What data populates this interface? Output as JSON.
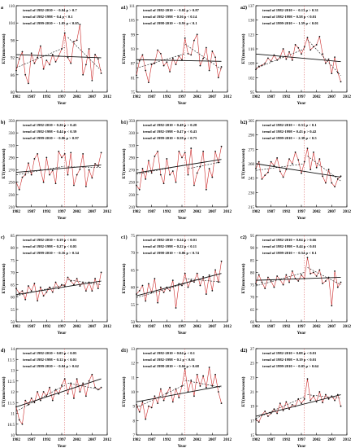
{
  "figure": {
    "rows": 4,
    "cols": 3,
    "colors": {
      "series": "#cc2b2b",
      "marker": "#111111",
      "trend": "#111111",
      "divider": "#cc2b2b",
      "axis": "#000000"
    }
  },
  "chart_data": [
    {
      "type": "line",
      "panel": "a",
      "xlabel": "Year",
      "ylabel": "ET(mm/season)",
      "xlim": [
        1982,
        2012
      ],
      "xticks": [
        1982,
        1987,
        1992,
        1997,
        2002,
        2007,
        2012
      ],
      "ylim": [
        80,
        110
      ],
      "yticks": [
        80,
        86,
        92,
        98,
        104,
        110
      ],
      "x_start": 1982,
      "values": [
        87.5,
        91.5,
        94.0,
        86.0,
        83.0,
        93.5,
        90.0,
        92.0,
        96.0,
        88.0,
        91.0,
        89.5,
        93.0,
        90.5,
        92.5,
        95.0,
        100.5,
        92.0,
        90.0,
        97.5,
        98.0,
        103.5,
        86.0,
        89.5,
        95.0,
        84.0,
        93.0,
        91.5,
        86.5
      ],
      "trend_lines": [
        {
          "label": "trend of 1982-2010 = - 0.04 p > 0.7",
          "x0": 1982,
          "x1": 2010,
          "y0": 93.0,
          "y1": 91.9,
          "style": "solid"
        },
        {
          "label": "trend of 1982-1998 = 0.4 p < 0.1",
          "x0": 1982,
          "x1": 1998,
          "y0": 88.5,
          "y1": 95.5,
          "style": "dash"
        },
        {
          "label": "trend of 1999-2010 = - 1.05 p < 0.05",
          "x0": 1999,
          "x1": 2010,
          "y0": 99.0,
          "y1": 87.5,
          "style": "dash"
        }
      ]
    },
    {
      "type": "line",
      "panel": "a1)",
      "xlabel": "Year",
      "ylabel": "ET(mm/season)",
      "xlim": [
        1982,
        2012
      ],
      "xticks": [
        1982,
        1987,
        1992,
        1997,
        2002,
        2007,
        2012
      ],
      "ylim": [
        75,
        111
      ],
      "yticks": [
        75,
        81,
        87,
        93,
        99,
        105,
        111
      ],
      "x_start": 1982,
      "values": [
        82.0,
        88.0,
        90.5,
        84.0,
        79.0,
        86.5,
        87.0,
        92.5,
        91.0,
        86.0,
        87.5,
        83.5,
        89.0,
        86.5,
        90.0,
        88.5,
        97.5,
        91.0,
        90.5,
        96.5,
        99.0,
        86.0,
        89.0,
        93.5,
        84.0,
        92.0,
        89.5,
        81.0,
        85.5
      ],
      "trend_lines": [
        {
          "label": "trend of 1982-2010 = - 0.02 p > 0.87",
          "x0": 1982,
          "x1": 2010,
          "y0": 88.5,
          "y1": 87.8,
          "style": "solid"
        },
        {
          "label": "trend of 1982-1998 = 0.36 p < 0.14",
          "x0": 1982,
          "x1": 1998,
          "y0": 85.0,
          "y1": 91.0,
          "style": "dash"
        },
        {
          "label": "trend of 1998-2010 = - 0.91 p < 0.1",
          "x0": 1998,
          "x1": 2010,
          "y0": 95.0,
          "y1": 84.5,
          "style": "dash"
        }
      ]
    },
    {
      "type": "line",
      "panel": "a2)",
      "xlabel": "Year",
      "ylabel": "ET(mm/season)",
      "xlim": [
        1982,
        2012
      ],
      "xticks": [
        1982,
        1987,
        1992,
        1997,
        2002,
        2007,
        2012
      ],
      "ylim": [
        95,
        137
      ],
      "yticks": [
        95,
        102,
        109,
        116,
        123,
        130,
        137
      ],
      "x_start": 1982,
      "values": [
        106.0,
        107.5,
        108.0,
        109.0,
        111.5,
        110.0,
        113.0,
        110.5,
        112.0,
        116.0,
        111.0,
        114.5,
        110.5,
        118.0,
        116.5,
        113.5,
        117.0,
        121.5,
        115.5,
        117.0,
        118.0,
        122.0,
        113.5,
        109.0,
        111.0,
        104.0,
        112.0,
        104.5,
        100.0
      ],
      "trend_lines": [
        {
          "label": "trend of 1982-2010 = - 0.13 p > 0.31",
          "x0": 1982,
          "x1": 2010,
          "y0": 113.5,
          "y1": 109.8,
          "style": "solid"
        },
        {
          "label": "trend of 1982-1998 = 0.58 p < 0.01",
          "x0": 1982,
          "x1": 1998,
          "y0": 106.5,
          "y1": 116.0,
          "style": "dash"
        },
        {
          "label": "trend of 1999-2010 = - 1.59 p < 0.01",
          "x0": 1999,
          "x1": 2010,
          "y0": 120.5,
          "y1": 103.0,
          "style": "dash"
        }
      ]
    },
    {
      "type": "line",
      "panel": "b)",
      "xlabel": "Year",
      "ylabel": "ET(mm/season)",
      "xlim": [
        1982,
        2012
      ],
      "xticks": [
        1982,
        1987,
        1992,
        1997,
        2002,
        2007,
        2012
      ],
      "ylim": [
        210,
        350
      ],
      "yticks": [
        210,
        230,
        250,
        270,
        290,
        310,
        330,
        350
      ],
      "x_start": 1982,
      "values": [
        250,
        238,
        258,
        262,
        281,
        262,
        288,
        296,
        270,
        250,
        290,
        262,
        269,
        248,
        300,
        290,
        296,
        262,
        298,
        245,
        262,
        271,
        296,
        243,
        270,
        257,
        280,
        276,
        298
      ],
      "trend_lines": [
        {
          "label": "trend of 1982-2010 = 0.26 p > 0.45",
          "x0": 1982,
          "x1": 2010,
          "y0": 266,
          "y1": 278,
          "style": "solid"
        },
        {
          "label": "trend of 1982-1998 = 0.44 p < 0.39",
          "x0": 1982,
          "x1": 1998,
          "y0": 262,
          "y1": 276,
          "style": "dash"
        },
        {
          "label": "trend of 1999-2010 = - 0.06 p > 0.97",
          "x0": 1999,
          "x1": 2010,
          "y0": 275,
          "y1": 274,
          "style": "dash"
        }
      ]
    },
    {
      "type": "line",
      "panel": "b1)",
      "xlabel": "Year",
      "ylabel": "ET(mm/season)",
      "xlim": [
        1982,
        2012
      ],
      "xticks": [
        1982,
        1987,
        1992,
        1997,
        2002,
        2007,
        2012
      ],
      "ylim": [
        210,
        350
      ],
      "yticks": [
        210,
        230,
        250,
        270,
        290,
        310,
        330,
        350
      ],
      "x_start": 1982,
      "values": [
        245,
        238,
        272,
        255,
        285,
        265,
        292,
        300,
        262,
        248,
        288,
        262,
        268,
        250,
        300,
        290,
        298,
        262,
        305,
        245,
        265,
        275,
        300,
        238,
        272,
        258,
        300,
        282,
        308
      ],
      "trend_lines": [
        {
          "label": "trend of 1982-2010 = 0.48 p > 0.28",
          "x0": 1982,
          "x1": 2010,
          "y0": 265,
          "y1": 287,
          "style": "solid"
        },
        {
          "label": "trend of 1982-1998 = 0.47 p < 0.43",
          "x0": 1982,
          "x1": 1998,
          "y0": 263,
          "y1": 278,
          "style": "dash"
        },
        {
          "label": "trend of 1999-2010 = 0.58 p < 0.75",
          "x0": 1999,
          "x1": 2010,
          "y0": 272,
          "y1": 283,
          "style": "dash"
        }
      ]
    },
    {
      "type": "line",
      "panel": "b2)",
      "xlabel": "Year",
      "ylabel": "ET(mm/season)",
      "xlim": [
        1982,
        2012
      ],
      "xticks": [
        1982,
        1987,
        1992,
        1997,
        2002,
        2007,
        2012
      ],
      "ylim": [
        215,
        305
      ],
      "yticks": [
        215,
        230,
        245,
        260,
        275,
        290,
        305
      ],
      "x_start": 1982,
      "values": [
        255,
        262,
        244,
        248,
        251,
        262,
        258,
        266,
        252,
        246,
        254,
        265,
        260,
        272,
        264,
        250,
        262,
        276,
        254,
        272,
        256,
        265,
        247,
        240,
        254,
        240,
        236,
        244,
        247
      ],
      "trend_lines": [
        {
          "label": "trend of 1982-2010 = - 0.51 p < 0.1",
          "x0": 1982,
          "x1": 2010,
          "y0": 260,
          "y1": 246,
          "style": "solid"
        },
        {
          "label": "trend of 1982-1998 = 0.43 p > 0.42",
          "x0": 1982,
          "x1": 1998,
          "y0": 253,
          "y1": 260,
          "style": "dash"
        },
        {
          "label": "trend of 1999-2010 = - 2.38 p < 0.5",
          "x0": 1999,
          "x1": 2010,
          "y0": 268,
          "y1": 242,
          "style": "dash"
        }
      ]
    },
    {
      "type": "line",
      "panel": "c)",
      "xlabel": "Year",
      "ylabel": "ET(mm/season)",
      "xlim": [
        1982,
        2012
      ],
      "xticks": [
        1982,
        1987,
        1992,
        1997,
        2002,
        2007,
        2012
      ],
      "ylim": [
        50,
        85
      ],
      "yticks": [
        50,
        55,
        60,
        65,
        70,
        75,
        80,
        85
      ],
      "x_start": 1982,
      "values": [
        63.5,
        61.5,
        62.5,
        59.0,
        64.5,
        62.5,
        65.5,
        58.5,
        64.0,
        60.5,
        62.0,
        64.0,
        62.0,
        66.0,
        63.5,
        65.0,
        64.5,
        68.0,
        66.5,
        65.0,
        67.5,
        64.5,
        66.0,
        62.5,
        66.0,
        62.5,
        67.5,
        63.5,
        70.0
      ],
      "trend_lines": [
        {
          "label": "trend of 1982-2010 = 0.19 p < 0.01",
          "x0": 1982,
          "x1": 2010,
          "y0": 61.0,
          "y1": 66.5,
          "style": "solid"
        },
        {
          "label": "trend of 1982-1998 = 0.27 p < 0.05",
          "x0": 1982,
          "x1": 1998,
          "y0": 60.5,
          "y1": 65.0,
          "style": "dash"
        },
        {
          "label": "trend of 1999-2010 = - 0.16 p > 0.34",
          "x0": 1999,
          "x1": 2010,
          "y0": 67.0,
          "y1": 65.0,
          "style": "dash"
        }
      ]
    },
    {
      "type": "line",
      "panel": "c1)",
      "xlabel": "Year",
      "ylabel": "ET(mm/season)",
      "xlim": [
        1982,
        2012
      ],
      "xticks": [
        1982,
        1987,
        1992,
        1997,
        2002,
        2007,
        2012
      ],
      "ylim": [
        50,
        75
      ],
      "yticks": [
        50,
        55,
        60,
        65,
        70,
        75
      ],
      "x_start": 1982,
      "values": [
        58.0,
        59.0,
        60.5,
        56.0,
        61.0,
        58.5,
        62.5,
        55.5,
        60.0,
        58.5,
        60.0,
        59.0,
        62.0,
        54.0,
        61.0,
        60.5,
        64.0,
        60.0,
        62.0,
        61.5,
        64.0,
        60.5,
        63.0,
        58.0,
        63.5,
        59.0,
        65.0,
        61.5,
        67.5
      ],
      "trend_lines": [
        {
          "label": "trend of 1982-2010 = 0.24 p < 0.01",
          "x0": 1982,
          "x1": 2010,
          "y0": 57.5,
          "y1": 64.0,
          "style": "solid"
        },
        {
          "label": "trend of 1982-1998 = 0.22 p < 0.11",
          "x0": 1982,
          "x1": 1998,
          "y0": 57.0,
          "y1": 61.0,
          "style": "dash"
        },
        {
          "label": "trend of 1998-2010 = - 0.06 p < 0.74",
          "x0": 1998,
          "x1": 2010,
          "y0": 62.5,
          "y1": 61.5,
          "style": "dash"
        }
      ]
    },
    {
      "type": "line",
      "panel": "c2)",
      "xlabel": "Year",
      "ylabel": "ET(mm/season)",
      "xlim": [
        1982,
        2012
      ],
      "xticks": [
        1982,
        1987,
        1992,
        1997,
        2002,
        2007,
        2012
      ],
      "ylim": [
        60,
        95
      ],
      "yticks": [
        60,
        65,
        70,
        75,
        80,
        85,
        90,
        95
      ],
      "x_start": 1982,
      "values": [
        75.5,
        79.0,
        76.0,
        73.5,
        78.0,
        76.5,
        74.0,
        78.5,
        77.0,
        75.0,
        79.0,
        76.0,
        80.5,
        77.5,
        76.5,
        79.0,
        77.5,
        86.0,
        79.5,
        80.0,
        78.5,
        81.0,
        75.5,
        76.5,
        78.0,
        66.5,
        80.5,
        74.0,
        76.0
      ],
      "trend_lines": [
        {
          "label": "trend of 1982-2010 = 0.04 p > 0.66",
          "x0": 1982,
          "x1": 2010,
          "y0": 76.8,
          "y1": 78.0,
          "style": "solid"
        },
        {
          "label": "trend of 1982-1998 = 0.44 p < 0.01",
          "x0": 1982,
          "x1": 1998,
          "y0": 74.5,
          "y1": 80.0,
          "style": "dash"
        },
        {
          "label": "trend of 1999-2010 = - 0.54 p < 0.1",
          "x0": 1999,
          "x1": 2010,
          "y0": 82.0,
          "y1": 75.0,
          "style": "dash"
        }
      ]
    },
    {
      "type": "line",
      "panel": "d)",
      "xlabel": "Year",
      "ylabel": "ET(mm/season)",
      "xlim": [
        1982,
        2012
      ],
      "xticks": [
        1982,
        1987,
        1992,
        1997,
        2002,
        2007,
        2012
      ],
      "ylim": [
        10,
        14
      ],
      "yticks": [
        10,
        10.5,
        11,
        11.5,
        12,
        12.5,
        13,
        13.5,
        14
      ],
      "x_start": 1982,
      "values": [
        11.3,
        10.7,
        10.5,
        11.6,
        11.4,
        11.7,
        11.5,
        12.0,
        11.6,
        12.0,
        11.8,
        12.2,
        11.6,
        12.1,
        11.9,
        12.3,
        12.6,
        11.9,
        12.4,
        11.7,
        12.6,
        12.0,
        12.4,
        11.8,
        12.5,
        12.8,
        12.2,
        12.1,
        12.2
      ],
      "trend_lines": [
        {
          "label": "trend of 1982-2010 = 0.05 p < 0.05",
          "x0": 1982,
          "x1": 2010,
          "y0": 11.3,
          "y1": 12.6,
          "style": "solid"
        },
        {
          "label": "trend of 1982-1998 = 0.12 p < 0.01",
          "x0": 1982,
          "x1": 1998,
          "y0": 11.1,
          "y1": 12.3,
          "style": "dash"
        },
        {
          "label": "trend of 1999-2010 = - 0.04 p > 0.62",
          "x0": 1999,
          "x1": 2010,
          "y0": 12.4,
          "y1": 12.1,
          "style": "dash"
        }
      ]
    },
    {
      "type": "line",
      "panel": "d1)",
      "xlabel": "Year",
      "ylabel": "ET(mm/season)",
      "xlim": [
        1982,
        2012
      ],
      "xticks": [
        1982,
        1987,
        1992,
        1997,
        2002,
        2007,
        2012
      ],
      "ylim": [
        7,
        13
      ],
      "yticks": [
        7,
        8,
        9,
        10,
        11,
        12,
        13
      ],
      "x_start": 1982,
      "values": [
        9.1,
        8.6,
        9.3,
        8.1,
        9.0,
        8.9,
        9.7,
        9.2,
        10.2,
        9.4,
        9.9,
        10.3,
        9.3,
        10.2,
        9.6,
        10.4,
        11.6,
        10.0,
        10.8,
        9.7,
        11.2,
        10.4,
        11.1,
        10.3,
        11.7,
        10.4,
        11.2,
        10.0,
        9.2
      ],
      "trend_lines": [
        {
          "label": "trend of 1982-2010 = 0.04 p < 0.1",
          "x0": 1982,
          "x1": 2010,
          "y0": 9.3,
          "y1": 10.4,
          "style": "solid"
        },
        {
          "label": "trend of 1982-1998 = 0.1 p < 0.01",
          "x0": 1982,
          "x1": 1998,
          "y0": 8.9,
          "y1": 10.5,
          "style": "dash"
        },
        {
          "label": "trend of 1998-2010 = - 0.04 p > 0.68",
          "x0": 1998,
          "x1": 2010,
          "y0": 10.8,
          "y1": 10.3,
          "style": "dash"
        }
      ]
    },
    {
      "type": "line",
      "panel": "d2)",
      "xlabel": "Year",
      "ylabel": "ET(mm/season)",
      "xlim": [
        1982,
        2012
      ],
      "xticks": [
        1982,
        1987,
        1992,
        1997,
        2002,
        2007,
        2012
      ],
      "ylim": [
        15,
        27
      ],
      "yticks": [
        15,
        17,
        19,
        21,
        23,
        25,
        27
      ],
      "x_start": 1982,
      "values": [
        17.2,
        16.8,
        17.8,
        18.3,
        17.6,
        18.0,
        18.6,
        18.0,
        19.4,
        18.4,
        19.6,
        18.6,
        19.2,
        19.0,
        20.0,
        19.4,
        20.0,
        22.8,
        19.8,
        20.4,
        19.6,
        21.0,
        19.5,
        20.6,
        20.0,
        20.4,
        19.8,
        20.6,
        19.0
      ],
      "trend_lines": [
        {
          "label": "trend of 1982-2010 = 0.08 p < 0.01",
          "x0": 1982,
          "x1": 2010,
          "y0": 17.6,
          "y1": 20.6,
          "style": "solid"
        },
        {
          "label": "trend of 1982-1998 = 0.19 p < 0.01",
          "x0": 1982,
          "x1": 1998,
          "y0": 17.3,
          "y1": 20.3,
          "style": "dash"
        },
        {
          "label": "trend of 1999-2010 = - 0.05 p > 0.64",
          "x0": 1999,
          "x1": 2010,
          "y0": 20.6,
          "y1": 20.1,
          "style": "dash"
        }
      ]
    }
  ]
}
